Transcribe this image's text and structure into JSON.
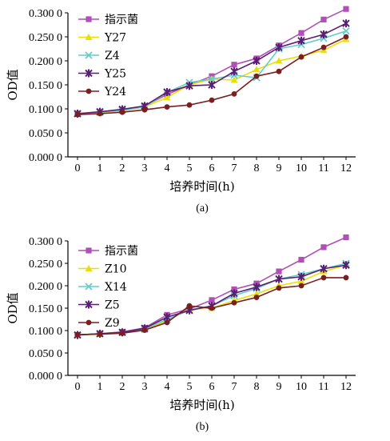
{
  "chart_data": [
    {
      "type": "line",
      "panel_label": "(a)",
      "xlabel": "培养时间(h)",
      "ylabel": "OD值",
      "x": [
        0,
        1,
        2,
        3,
        4,
        5,
        6,
        7,
        8,
        9,
        10,
        11,
        12
      ],
      "xticks": [
        "0",
        "1",
        "2",
        "3",
        "4",
        "5",
        "6",
        "7",
        "8",
        "9",
        "10",
        "11",
        "12"
      ],
      "yticks": [
        "0.000 0",
        "0.050 0",
        "0.100 0",
        "0.150 0",
        "0.200 0",
        "0.250 0",
        "0.300 0"
      ],
      "ylim": [
        0,
        0.3
      ],
      "grid": false,
      "legend_position": "top-left",
      "series": [
        {
          "name": "指示菌",
          "color": "#b04fb8",
          "marker": "square",
          "values": [
            0.09,
            0.093,
            0.098,
            0.106,
            0.13,
            0.15,
            0.168,
            0.192,
            0.205,
            0.232,
            0.258,
            0.286,
            0.308
          ]
        },
        {
          "name": "Y27",
          "color": "#e8e000",
          "marker": "triangle",
          "values": [
            0.089,
            0.092,
            0.096,
            0.104,
            0.124,
            0.15,
            0.162,
            0.16,
            0.182,
            0.2,
            0.21,
            0.222,
            0.245
          ]
        },
        {
          "name": "Z4",
          "color": "#66cccc",
          "marker": "x",
          "values": [
            0.09,
            0.093,
            0.097,
            0.104,
            0.134,
            0.155,
            0.162,
            0.17,
            0.165,
            0.225,
            0.234,
            0.247,
            0.262
          ]
        },
        {
          "name": "Y25",
          "color": "#5a1e72",
          "marker": "star",
          "values": [
            0.09,
            0.094,
            0.099,
            0.106,
            0.135,
            0.148,
            0.15,
            0.178,
            0.2,
            0.228,
            0.242,
            0.255,
            0.278
          ]
        },
        {
          "name": "Y24",
          "color": "#7a1f20",
          "marker": "circle",
          "values": [
            0.088,
            0.09,
            0.093,
            0.098,
            0.104,
            0.108,
            0.118,
            0.131,
            0.168,
            0.178,
            0.208,
            0.228,
            0.25
          ]
        }
      ]
    },
    {
      "type": "line",
      "panel_label": "(b)",
      "xlabel": "培养时间(h)",
      "ylabel": "OD值",
      "x": [
        0,
        1,
        2,
        3,
        4,
        5,
        6,
        7,
        8,
        9,
        10,
        11,
        12
      ],
      "xticks": [
        "0",
        "1",
        "2",
        "3",
        "4",
        "5",
        "6",
        "7",
        "8",
        "9",
        "10",
        "11",
        "12"
      ],
      "yticks": [
        "0.000 0",
        "0.050 0",
        "0.100 0",
        "0.150 0",
        "0.200 0",
        "0.250 0",
        "0.300 0"
      ],
      "ylim": [
        0,
        0.3
      ],
      "grid": false,
      "legend_position": "top-left",
      "series": [
        {
          "name": "指示菌",
          "color": "#b04fb8",
          "marker": "square",
          "values": [
            0.09,
            0.093,
            0.097,
            0.106,
            0.135,
            0.148,
            0.168,
            0.192,
            0.205,
            0.232,
            0.258,
            0.286,
            0.308
          ]
        },
        {
          "name": "Z10",
          "color": "#e8e000",
          "marker": "triangle",
          "values": [
            0.09,
            0.092,
            0.096,
            0.101,
            0.122,
            0.148,
            0.15,
            0.167,
            0.182,
            0.2,
            0.21,
            0.232,
            0.246
          ]
        },
        {
          "name": "X14",
          "color": "#66cccc",
          "marker": "x",
          "values": [
            0.09,
            0.093,
            0.096,
            0.104,
            0.125,
            0.145,
            0.155,
            0.178,
            0.194,
            0.215,
            0.225,
            0.238,
            0.25
          ]
        },
        {
          "name": "Z5",
          "color": "#5a1e72",
          "marker": "star",
          "values": [
            0.09,
            0.093,
            0.096,
            0.105,
            0.13,
            0.145,
            0.155,
            0.183,
            0.197,
            0.215,
            0.22,
            0.238,
            0.246
          ]
        },
        {
          "name": "Z9",
          "color": "#7a1f20",
          "marker": "circle",
          "values": [
            0.091,
            0.092,
            0.094,
            0.101,
            0.118,
            0.155,
            0.15,
            0.162,
            0.174,
            0.195,
            0.2,
            0.218,
            0.218
          ]
        }
      ]
    }
  ]
}
